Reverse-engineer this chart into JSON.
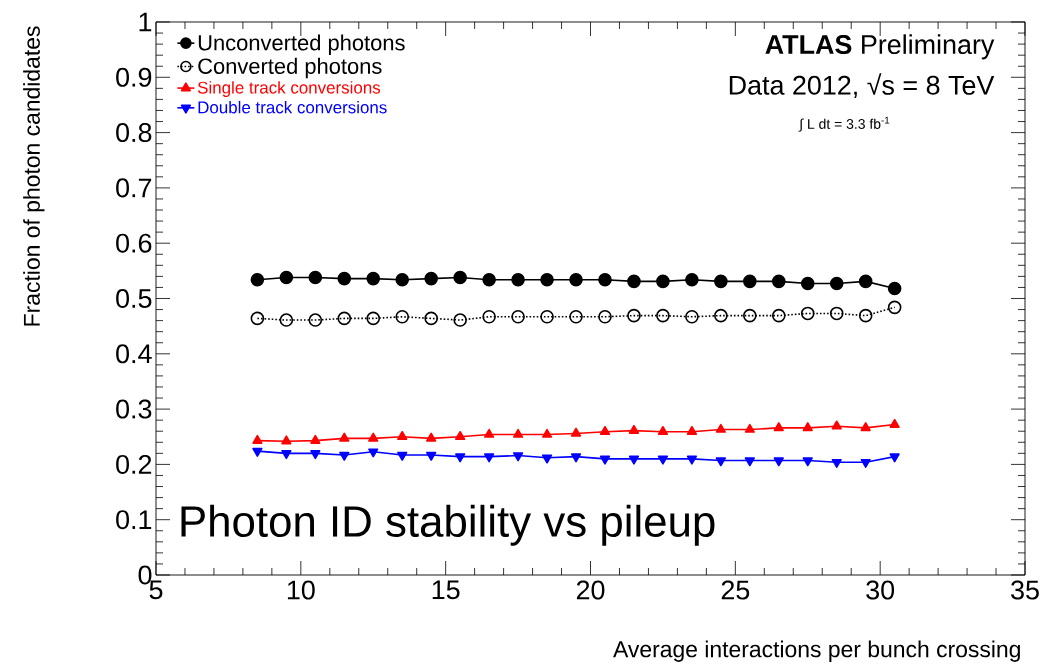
{
  "chart_data": {
    "type": "line",
    "xlabel": "Average interactions per bunch crossing",
    "ylabel": "Fraction of photon candidates",
    "x": [
      8.5,
      9.5,
      10.5,
      11.5,
      12.5,
      13.5,
      14.5,
      15.5,
      16.5,
      17.5,
      18.5,
      19.5,
      20.5,
      21.5,
      22.5,
      23.5,
      24.5,
      25.5,
      26.5,
      27.5,
      28.5,
      29.5,
      30.5
    ],
    "series": [
      {
        "name": "Unconverted photons",
        "color": "#000000",
        "marker": "circle",
        "line_style": "solid",
        "values": [
          0.534,
          0.538,
          0.538,
          0.536,
          0.536,
          0.534,
          0.536,
          0.538,
          0.534,
          0.534,
          0.534,
          0.534,
          0.534,
          0.531,
          0.531,
          0.534,
          0.531,
          0.531,
          0.531,
          0.527,
          0.527,
          0.531,
          0.518
        ]
      },
      {
        "name": "Converted photons",
        "color": "#000000",
        "marker": "circle-open",
        "line_style": "dotted",
        "values": [
          0.464,
          0.461,
          0.461,
          0.464,
          0.464,
          0.467,
          0.464,
          0.461,
          0.467,
          0.467,
          0.467,
          0.467,
          0.467,
          0.469,
          0.469,
          0.467,
          0.469,
          0.469,
          0.469,
          0.473,
          0.473,
          0.469,
          0.484
        ]
      },
      {
        "name": "Single track conversions",
        "color": "#ff0000",
        "marker": "triangle",
        "line_style": "solid",
        "values": [
          0.243,
          0.242,
          0.243,
          0.247,
          0.247,
          0.25,
          0.247,
          0.25,
          0.254,
          0.254,
          0.254,
          0.256,
          0.259,
          0.261,
          0.259,
          0.259,
          0.263,
          0.263,
          0.266,
          0.266,
          0.269,
          0.266,
          0.272
        ]
      },
      {
        "name": "Double track conversions",
        "color": "#0000ff",
        "marker": "triangle-down",
        "line_style": "solid",
        "values": [
          0.224,
          0.22,
          0.22,
          0.217,
          0.223,
          0.217,
          0.217,
          0.214,
          0.214,
          0.216,
          0.212,
          0.214,
          0.21,
          0.21,
          0.21,
          0.21,
          0.207,
          0.207,
          0.207,
          0.207,
          0.204,
          0.204,
          0.214
        ]
      }
    ],
    "xlim": [
      5,
      35
    ],
    "ylim": [
      0,
      1
    ],
    "xticks": [
      5,
      10,
      15,
      20,
      25,
      30,
      35
    ],
    "yticks": [
      0,
      0.1,
      0.2,
      0.3,
      0.4,
      0.5,
      0.6,
      0.7,
      0.8,
      0.9,
      1
    ],
    "grid": false,
    "legend": "top left",
    "annotations": [
      "**ATLAS** Preliminary",
      "Data 2012, √s = 8 TeV",
      "∫ L dt = 3.3 fb$^{-1}$",
      "Photon ID stability vs pileup"
    ]
  }
}
